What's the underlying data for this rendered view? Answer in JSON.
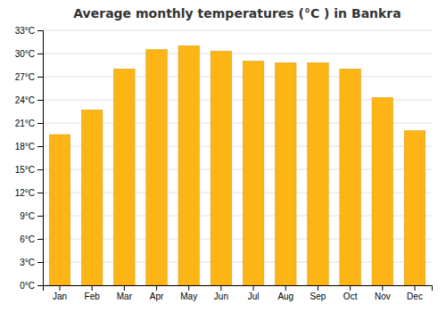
{
  "chart_data": {
    "type": "bar",
    "title": "Average monthly temperatures (°C ) in Bankra",
    "categories": [
      "Jan",
      "Feb",
      "Mar",
      "Apr",
      "May",
      "Jun",
      "Jul",
      "Aug",
      "Sep",
      "Oct",
      "Nov",
      "Dec"
    ],
    "values": [
      19.5,
      22.7,
      28.0,
      30.5,
      31.0,
      30.3,
      29.0,
      28.8,
      28.8,
      28.0,
      24.3,
      20.0
    ],
    "color": "#FDB515",
    "ylim": [
      0,
      33
    ],
    "yticks": [
      {
        "value": 0,
        "label": "0°C"
      },
      {
        "value": 3,
        "label": "3°C"
      },
      {
        "value": 6,
        "label": "6°C"
      },
      {
        "value": 9,
        "label": "9°C"
      },
      {
        "value": 12,
        "label": "12°C"
      },
      {
        "value": 15,
        "label": "15°C"
      },
      {
        "value": 18,
        "label": "18°C"
      },
      {
        "value": 21,
        "label": "21°C"
      },
      {
        "value": 24,
        "label": "24°C"
      },
      {
        "value": 27,
        "label": "27°C"
      },
      {
        "value": 30,
        "label": "30°C"
      },
      {
        "value": 33,
        "label": "33°C"
      }
    ],
    "grid": true
  }
}
